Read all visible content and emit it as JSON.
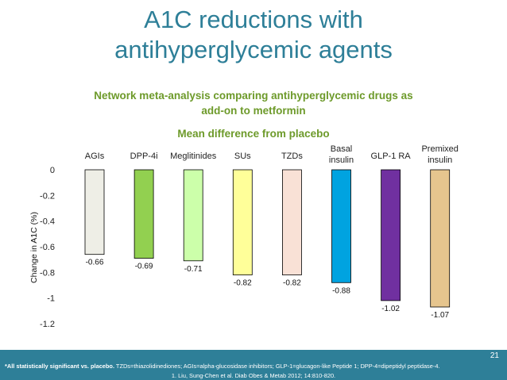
{
  "title_line1": "A1C reductions with",
  "title_line2": "antihyperglycemic agents",
  "subtitle_line1": "Network meta-analysis comparing antihyperglycemic drugs as",
  "subtitle_line2": "add-on to metformin",
  "chart_subtitle": "Mean difference from placebo",
  "page_number": "21",
  "footnote_bold": "*All statistically significant vs. placebo.",
  "footnote_rest": " TZDs=thiazolidinediones; AGIs=alpha-glucosidase inhibitors; GLP-1=glucagon-like Peptide 1; DPP-4=dipeptidyl peptidase-4.",
  "reference": "1. Liu, Sung-Chen et al. Diab Obes & Metab 2012; 14:810-820.",
  "chart_data": {
    "type": "bar",
    "title": "Mean difference from placebo",
    "ylabel": "Change in A1C (%)",
    "xlabel": "",
    "ylim": [
      -1.2,
      0
    ],
    "yticks": [
      "0",
      "-0.2",
      "-0.4",
      "-0.6",
      "-0.8",
      "-1",
      "-1.2"
    ],
    "categories": [
      [
        "AGIs"
      ],
      [
        "DPP-4i"
      ],
      [
        "Meglitinides"
      ],
      [
        "SUs"
      ],
      [
        "TZDs"
      ],
      [
        "Basal",
        "insulin"
      ],
      [
        "GLP-1 RA"
      ],
      [
        "Premixed",
        "insulin"
      ]
    ],
    "values": [
      -0.66,
      -0.69,
      -0.71,
      -0.82,
      -0.82,
      -0.88,
      -1.02,
      -1.07
    ],
    "value_labels": [
      "-0.66",
      "-0.69",
      "-0.71",
      "-0.82",
      "-0.82",
      "-0.88",
      "-1.02",
      "-1.07"
    ],
    "colors": [
      "#eeeee6",
      "#92d050",
      "#ccffaa",
      "#ffff99",
      "#f9e1d6",
      "#00a3e0",
      "#7030a0",
      "#e6c58e"
    ],
    "grid": false,
    "legend": "none"
  }
}
